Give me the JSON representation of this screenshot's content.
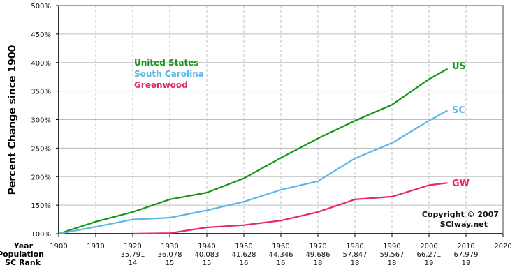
{
  "chart_data": {
    "type": "line",
    "title": "",
    "xlabel": "Year",
    "ylabel": "Percent Change since 1900",
    "ylim": [
      100,
      500
    ],
    "xlim": [
      1900,
      2020
    ],
    "y_ticks": [
      "100%",
      "150%",
      "200%",
      "250%",
      "300%",
      "350%",
      "400%",
      "450%",
      "500%"
    ],
    "x_ticks": [
      "1900",
      "1910",
      "1920",
      "1930",
      "1940",
      "1950",
      "1960",
      "1970",
      "1980",
      "1990",
      "2000",
      "2010",
      "2020"
    ],
    "grid": true,
    "legend": [
      "United States",
      "South Carolina",
      "Greenwood"
    ],
    "legend_position": "upper-left",
    "series": [
      {
        "name": "United States",
        "short": "US",
        "color": "#149614",
        "x": [
          1900,
          1910,
          1920,
          1930,
          1940,
          1950,
          1960,
          1970,
          1980,
          1990,
          2000,
          2005
        ],
        "values": [
          100,
          121,
          138,
          160,
          172,
          197,
          233,
          267,
          298,
          326,
          371,
          389
        ]
      },
      {
        "name": "South Carolina",
        "short": "SC",
        "color": "#5ab8e6",
        "x": [
          1900,
          1910,
          1920,
          1930,
          1940,
          1950,
          1960,
          1970,
          1980,
          1990,
          2000,
          2005
        ],
        "values": [
          100,
          112,
          125,
          128,
          141,
          156,
          177,
          192,
          232,
          259,
          298,
          316
        ]
      },
      {
        "name": "Greenwood",
        "short": "GW",
        "color": "#e62a5c",
        "x": [
          1920,
          1930,
          1940,
          1950,
          1960,
          1970,
          1980,
          1990,
          2000,
          2005
        ],
        "values": [
          100,
          101,
          111,
          115,
          123,
          138,
          160,
          165,
          185,
          189
        ]
      }
    ],
    "table_rows": {
      "labels": [
        "Year",
        "Population",
        "SC Rank"
      ],
      "years": [
        "1900",
        "1910",
        "1920",
        "1930",
        "1940",
        "1950",
        "1960",
        "1970",
        "1980",
        "1990",
        "2000",
        "2010",
        "2020"
      ],
      "population": [
        "",
        "",
        "35,791",
        "36,078",
        "40,083",
        "41,628",
        "44,346",
        "49,686",
        "57,847",
        "59,567",
        "66,271",
        "67,979",
        ""
      ],
      "sc_rank": [
        "",
        "",
        "14",
        "15",
        "15",
        "16",
        "16",
        "18",
        "18",
        "18",
        "19",
        "19",
        ""
      ]
    },
    "annotations": [
      "Copyright © 2007",
      "SCIway.net"
    ]
  }
}
